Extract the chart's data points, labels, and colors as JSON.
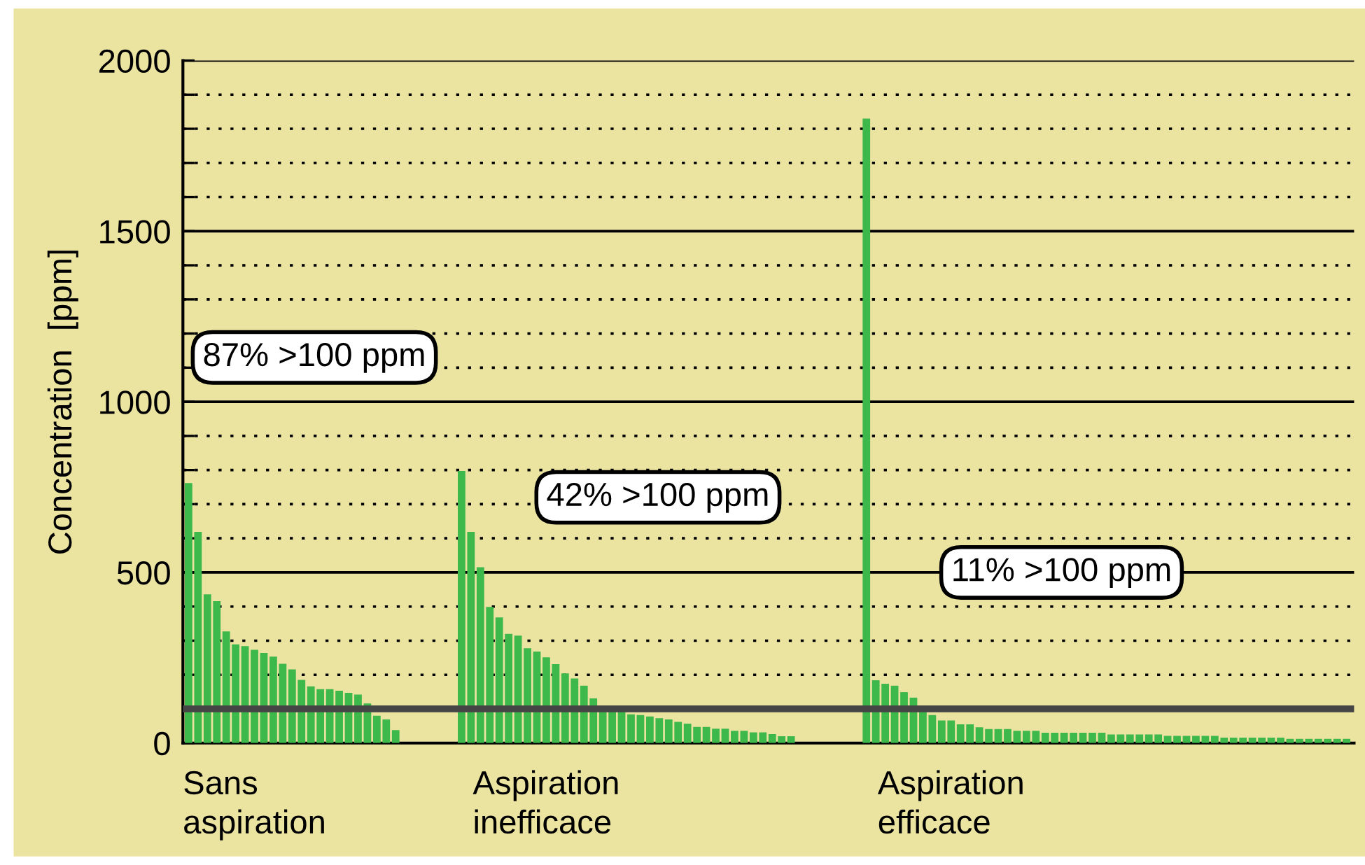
{
  "chart_data": {
    "type": "bar",
    "ylabel": "Concentration  [ppm]",
    "categories": [
      null,
      null,
      null,
      null,
      null,
      null,
      null,
      "Sans\naspiration",
      null,
      null,
      null,
      null,
      null,
      null,
      null,
      null,
      null,
      null,
      null,
      null,
      null,
      null,
      null,
      null,
      null,
      null,
      null,
      null,
      null,
      null,
      null,
      null,
      null,
      null,
      null,
      null,
      null,
      null,
      "Aspiration\ninefficace",
      null,
      null,
      null,
      null,
      null,
      null,
      null,
      null,
      null,
      null,
      null,
      null,
      null,
      null,
      null,
      null,
      null,
      null,
      null,
      null,
      null,
      null,
      null,
      null,
      null,
      null,
      null,
      null,
      null,
      null,
      null,
      null,
      null,
      null,
      null,
      null,
      null,
      null,
      null,
      null,
      null,
      null,
      "Aspiration\nefficace",
      null,
      null,
      null,
      null,
      null,
      null,
      null,
      null,
      null,
      null,
      null,
      null,
      null,
      null,
      null,
      null,
      null,
      null,
      null,
      null,
      null,
      null,
      null,
      null,
      null,
      null,
      null,
      null,
      null,
      null,
      null,
      null,
      null,
      null,
      null,
      null,
      null,
      null,
      null,
      null,
      null,
      null
    ],
    "values": [
      762,
      619,
      436,
      416,
      327,
      289,
      284,
      273,
      264,
      253,
      232,
      216,
      185,
      166,
      158,
      158,
      153,
      147,
      142,
      116,
      80,
      69,
      38,
      null,
      null,
      null,
      null,
      null,
      null,
      797,
      619,
      515,
      399,
      368,
      320,
      315,
      278,
      268,
      251,
      231,
      204,
      189,
      168,
      131,
      95,
      93,
      93,
      84,
      82,
      78,
      73,
      69,
      62,
      57,
      47,
      47,
      42,
      42,
      36,
      36,
      31,
      31,
      26,
      20,
      20,
      null,
      null,
      null,
      null,
      null,
      null,
      null,
      1830,
      184,
      174,
      168,
      149,
      133,
      92,
      82,
      66,
      66,
      55,
      55,
      46,
      41,
      41,
      41,
      36,
      36,
      36,
      30,
      30,
      30,
      30,
      30,
      30,
      30,
      25,
      25,
      25,
      25,
      25,
      25,
      21,
      21,
      21,
      21,
      21,
      21,
      16,
      16,
      16,
      16,
      16,
      16,
      16,
      12,
      12,
      12,
      12,
      12,
      12,
      12
    ],
    "color": "#3db84a",
    "ylim": [
      0,
      2000
    ],
    "yticks": [
      0,
      {
        "value": 100,
        "label": null
      },
      {
        "value": 200,
        "label": null
      },
      {
        "value": 300,
        "label": null
      },
      {
        "value": 400,
        "label": null
      },
      500,
      {
        "value": 600,
        "label": null
      },
      {
        "value": 700,
        "label": null
      },
      {
        "value": 800,
        "label": null
      },
      {
        "value": 900,
        "label": null
      },
      1000,
      {
        "value": 1100,
        "label": null
      },
      {
        "value": 1200,
        "label": null
      },
      {
        "value": 1300,
        "label": null
      },
      {
        "value": 1400,
        "label": null
      },
      1500,
      {
        "value": 1600,
        "label": null
      },
      {
        "value": 1700,
        "label": null
      },
      {
        "value": 1800,
        "label": null
      },
      {
        "value": 1900,
        "label": null
      },
      2000
    ],
    "grid": "y",
    "ref_lines": [
      {
        "axis": "y",
        "value": 100,
        "label": null,
        "color": "#454545"
      }
    ],
    "annotations": [
      "87% >100 ppm",
      "42% >100 ppm",
      "11% >100 ppm"
    ]
  }
}
